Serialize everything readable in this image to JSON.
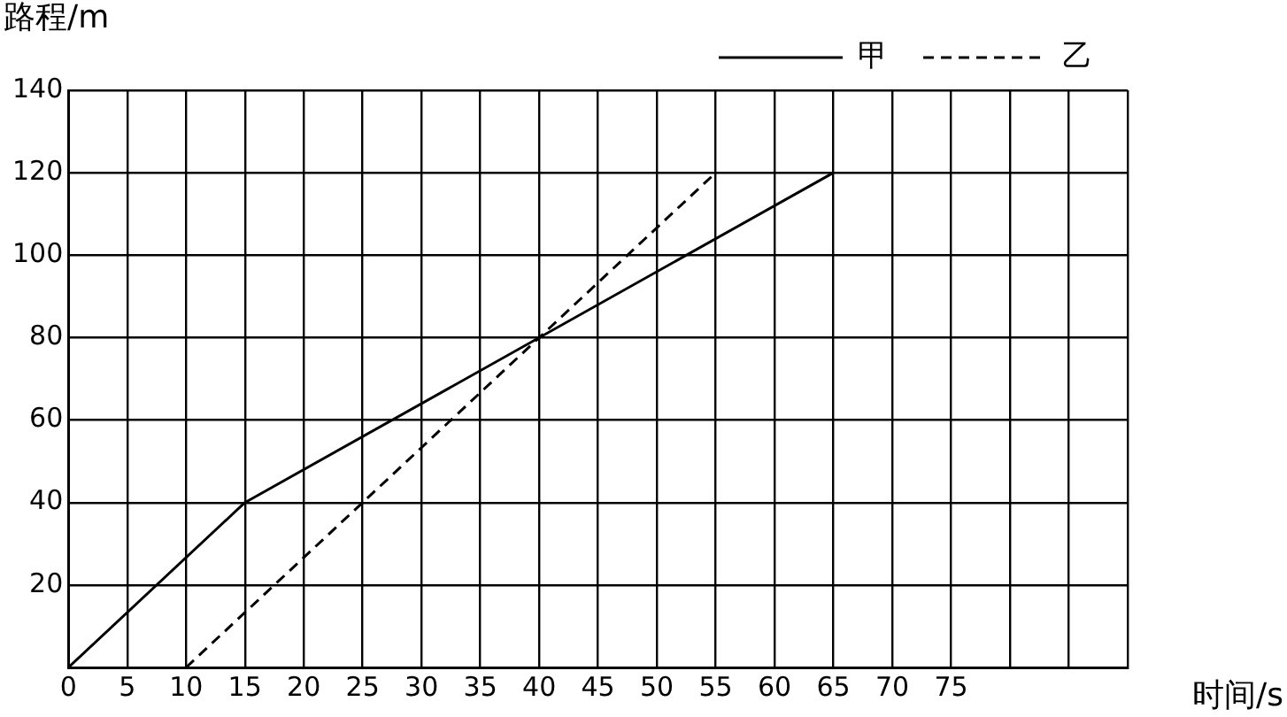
{
  "chart_data": {
    "type": "line",
    "xlabel": "时间/s",
    "ylabel": "路程/m",
    "xlim": [
      0,
      90
    ],
    "xticks": [
      0,
      5,
      10,
      15,
      20,
      25,
      30,
      35,
      40,
      45,
      50,
      55,
      60,
      65,
      70,
      75,
      {
        "value": 80,
        "label": null
      },
      {
        "value": 85,
        "label": null
      },
      {
        "value": 90,
        "label": null
      }
    ],
    "ylim": [
      0,
      140
    ],
    "yticks": [
      {
        "value": 0,
        "label": null
      },
      20,
      40,
      60,
      80,
      100,
      120,
      140
    ],
    "grid": true,
    "legend": "top right",
    "marker": "none",
    "series": [
      {
        "name": "甲",
        "color": "#000000",
        "line_style": "solid",
        "x": [
          0,
          15,
          65
        ],
        "values": [
          0,
          40,
          120
        ]
      },
      {
        "name": "乙",
        "color": "#000000",
        "line_style": "dashed",
        "x": [
          10,
          55
        ],
        "values": [
          0,
          120
        ]
      }
    ]
  }
}
